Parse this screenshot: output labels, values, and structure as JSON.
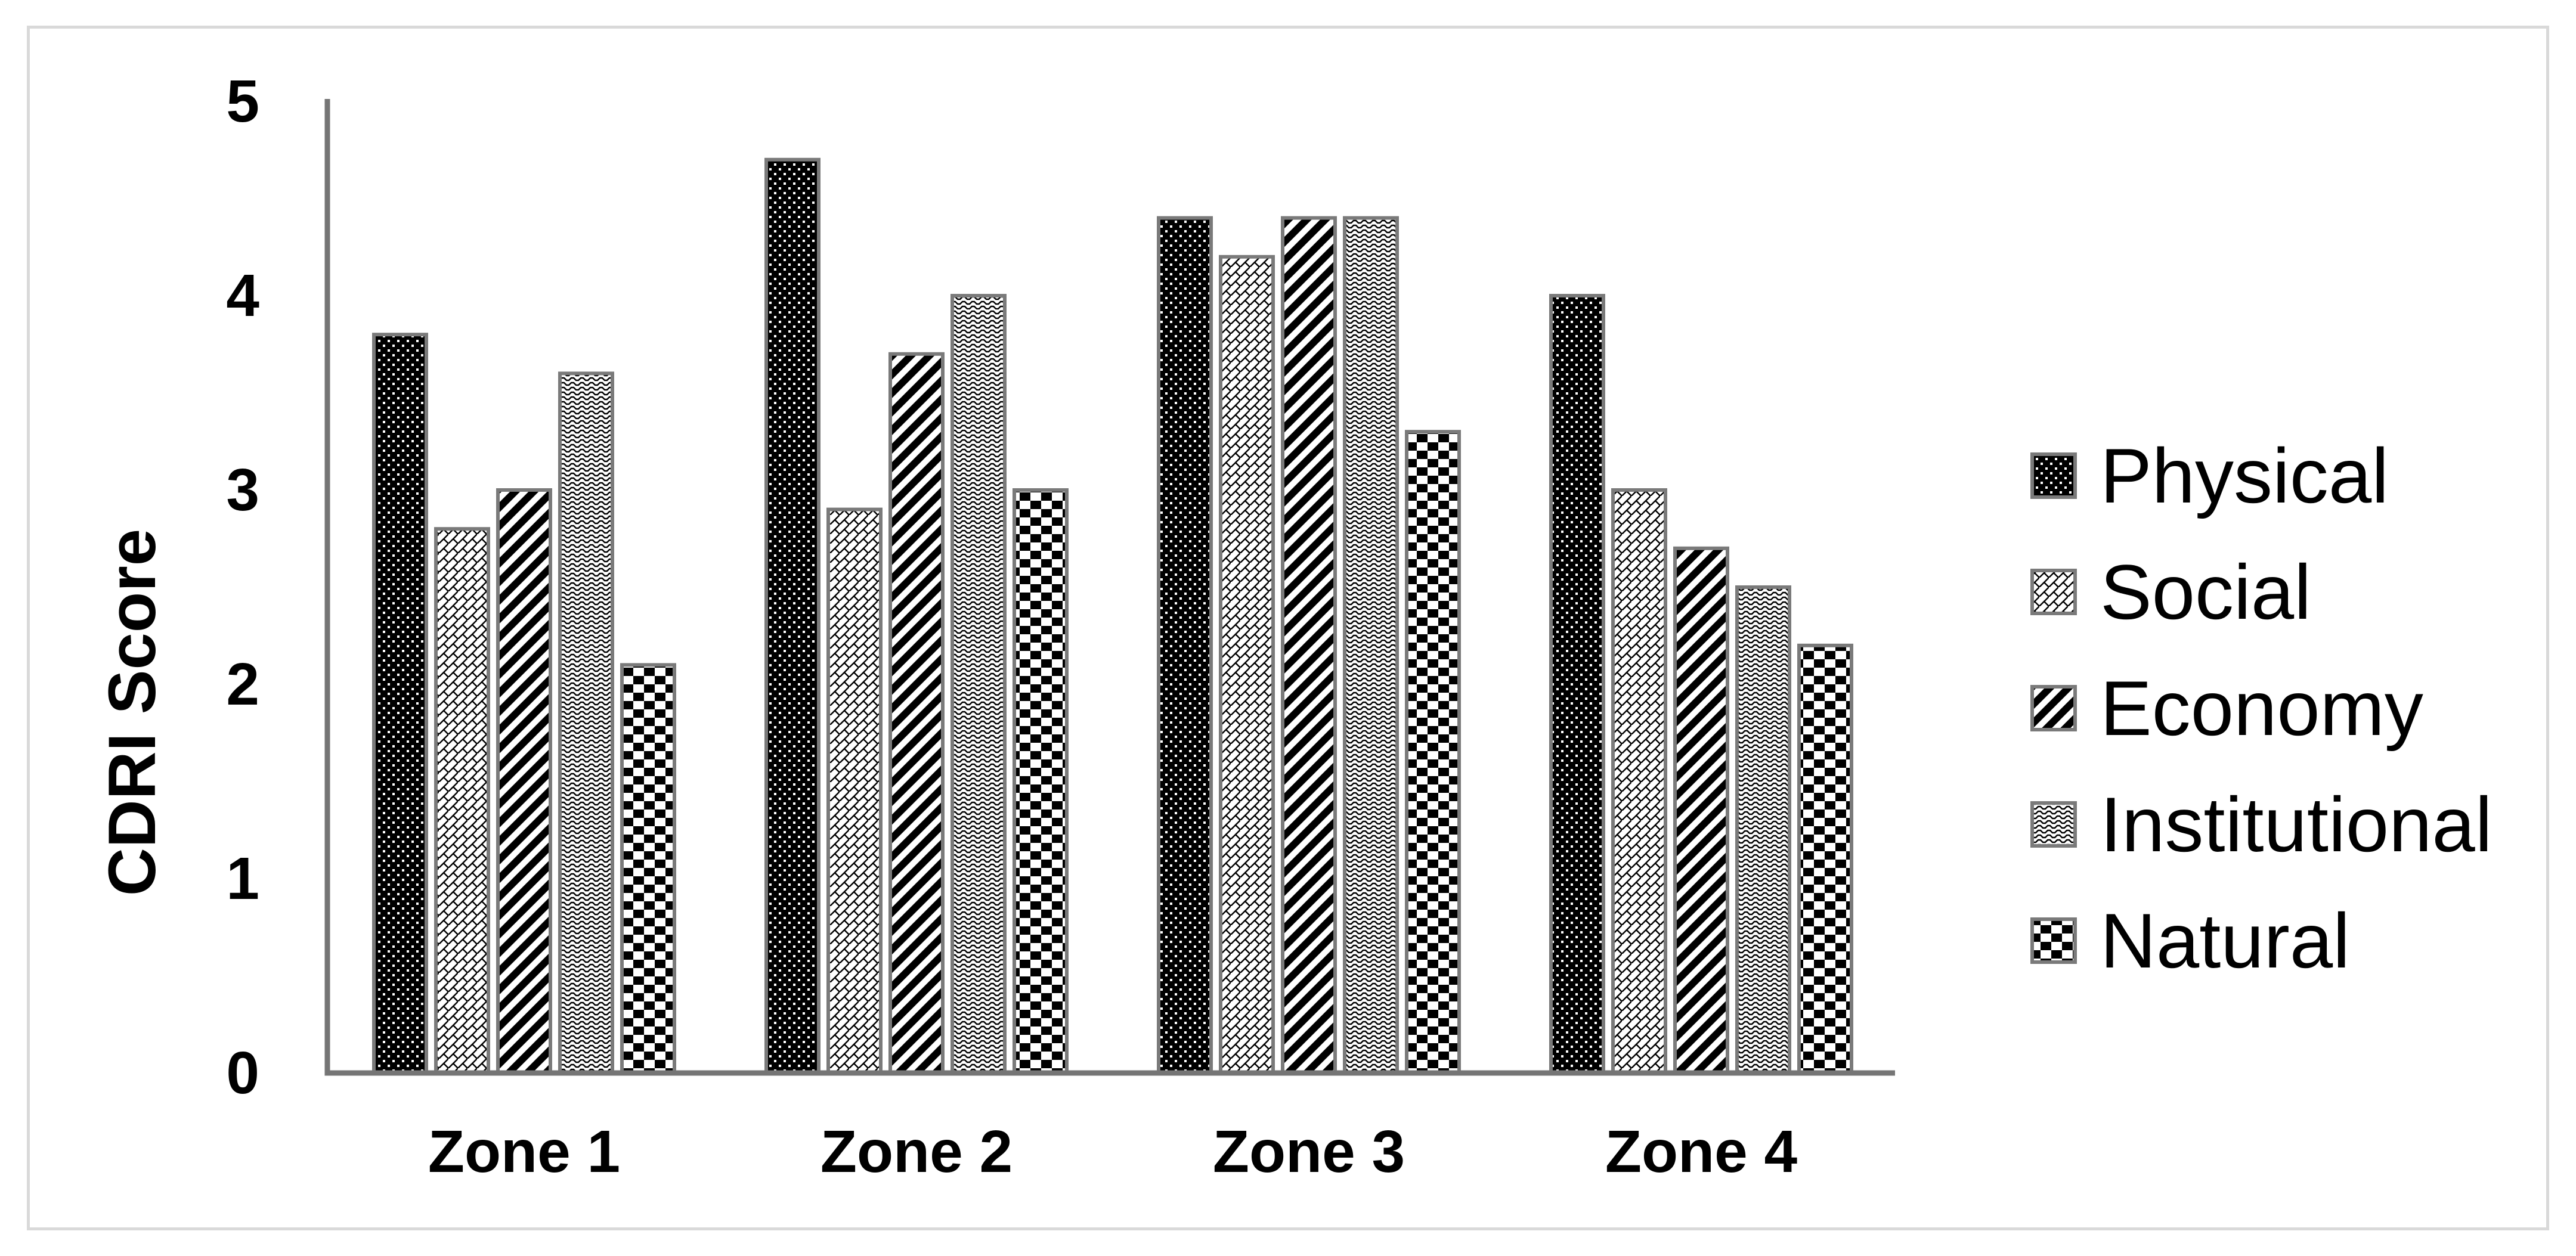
{
  "chart_data": {
    "type": "bar",
    "title": "",
    "xlabel": "",
    "ylabel": "CDRI Score",
    "categories": [
      "Zone 1",
      "Zone 2",
      "Zone 3",
      "Zone 4"
    ],
    "series": [
      {
        "name": "Physical",
        "pattern": "white-dots-on-black",
        "values": [
          3.8,
          4.7,
          4.4,
          4.0
        ]
      },
      {
        "name": "Social",
        "pattern": "diagonal-brick",
        "values": [
          2.8,
          2.9,
          4.2,
          3.0
        ]
      },
      {
        "name": "Economy",
        "pattern": "wide-downward-diagonal",
        "values": [
          3.0,
          3.7,
          4.4,
          2.7
        ]
      },
      {
        "name": "Institutional",
        "pattern": "horizontal-wave",
        "values": [
          3.6,
          4.0,
          4.4,
          2.5
        ]
      },
      {
        "name": "Natural",
        "pattern": "large-checkerboard",
        "values": [
          2.1,
          3.0,
          3.3,
          2.2
        ]
      }
    ],
    "ylim": [
      0,
      5
    ],
    "yticks": [
      0,
      1,
      2,
      3,
      4,
      5
    ],
    "grid": "off",
    "legend_position": "right"
  },
  "colors": {
    "background": "#ffffff",
    "frame_border": "#d9d9d9",
    "axis": "#757575",
    "bar_outline": "#7a7a7a",
    "text": "#000000",
    "pattern_fill": "#000000"
  }
}
